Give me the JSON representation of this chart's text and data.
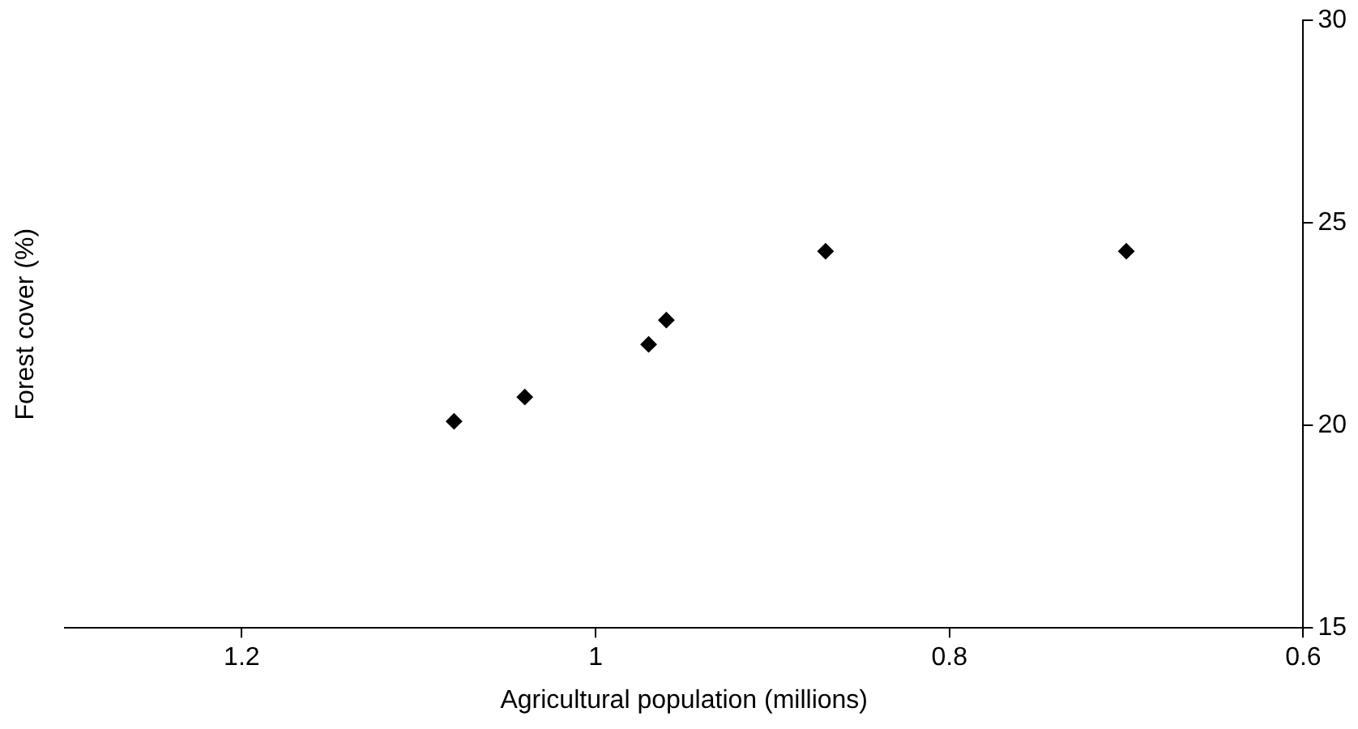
{
  "chart_data": {
    "type": "scatter",
    "xlabel": "Agricultural population (millions)",
    "ylabel": "Forest cover (%)",
    "x": [
      1.08,
      1.04,
      0.97,
      0.96,
      0.87,
      0.7
    ],
    "series": [
      {
        "color": "#000000",
        "values": [
          20.1,
          20.7,
          22.0,
          22.6,
          24.3,
          24.3
        ]
      }
    ],
    "xlim": [
      1.3,
      0.6
    ],
    "xticks": [
      1.2,
      1,
      0.8,
      0.6
    ],
    "ylim": [
      15,
      30
    ],
    "yticks": [
      15,
      20,
      25,
      30
    ],
    "grid": false,
    "legend": false,
    "marker": "diamond"
  }
}
